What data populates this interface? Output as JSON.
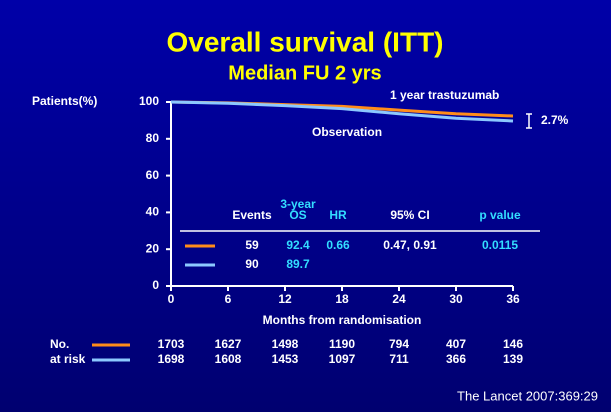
{
  "chart_data": {
    "type": "line",
    "title": "Overall survival (ITT)",
    "subtitle": "Median FU 2 yrs",
    "y_label": "Patients(%)",
    "x_label": "Months from randomisation",
    "x": [
      0,
      6,
      12,
      18,
      24,
      30,
      36
    ],
    "series": [
      {
        "name": "1 year trastuzumab",
        "color": "#ff8c1a",
        "values": [
          100,
          99.5,
          98.6,
          97.6,
          95.6,
          93.6,
          92.4
        ]
      },
      {
        "name": "Observation",
        "color": "#8cc8ff",
        "values": [
          100,
          99.3,
          98.0,
          96.4,
          93.6,
          91.2,
          89.7
        ]
      }
    ],
    "xlim": [
      0,
      36
    ],
    "ylim": [
      0,
      100
    ],
    "xticks": [
      0,
      6,
      12,
      18,
      24,
      30,
      36
    ],
    "yticks": [
      0,
      20,
      40,
      60,
      80,
      100
    ],
    "grid": false,
    "difference_label": "2.7%"
  },
  "results_table": {
    "headers": [
      [
        "Events"
      ],
      [
        "3-year",
        "OS"
      ],
      [
        "HR"
      ],
      [
        "95% CI"
      ],
      [
        "p value"
      ]
    ],
    "rows": [
      [
        "59",
        "92.4",
        "0.66",
        "0.47, 0.91",
        "0.0115"
      ],
      [
        "90",
        "89.7"
      ]
    ]
  },
  "at_risk": {
    "label": [
      "No.",
      "at risk"
    ],
    "rows": [
      [
        "1703",
        "1627",
        "1498",
        "1190",
        "794",
        "407",
        "146"
      ],
      [
        "1698",
        "1608",
        "1453",
        "1097",
        "711",
        "366",
        "139"
      ]
    ]
  },
  "citation": "The Lancet 2007:369:29"
}
